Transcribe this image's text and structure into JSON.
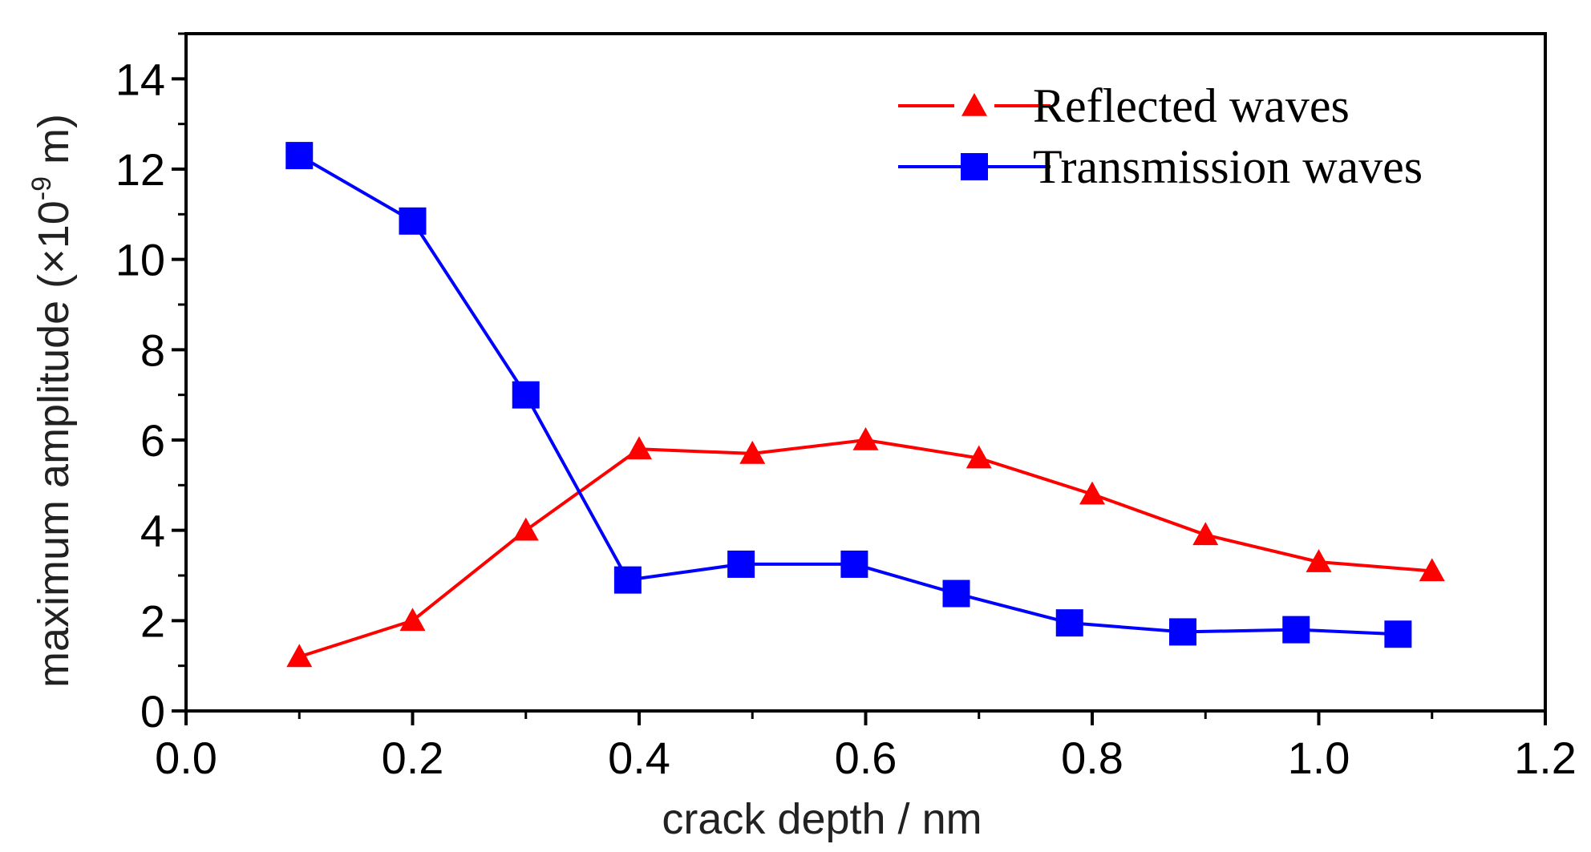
{
  "chart_data": {
    "type": "line",
    "xlabel": "crack depth / nm",
    "ylabel": "maximum amplitude (×10",
    "ylabel_sup": "-9",
    "ylabel_end": " m)",
    "xlim": [
      0.0,
      1.2
    ],
    "ylim": [
      0,
      15
    ],
    "xticks": [
      "0.0",
      "0.2",
      "0.4",
      "0.6",
      "0.8",
      "1.0",
      "1.2"
    ],
    "yticks": [
      "0",
      "2",
      "4",
      "6",
      "8",
      "10",
      "12",
      "14"
    ],
    "grid": false,
    "legend_position": "top-right",
    "series": [
      {
        "name": "Reflected waves",
        "color": "#ff0000",
        "marker": "triangle",
        "x": [
          0.1,
          0.2,
          0.3,
          0.4,
          0.5,
          0.6,
          0.7,
          0.8,
          0.9,
          1.0,
          1.1
        ],
        "y": [
          1.2,
          2.0,
          4.0,
          5.8,
          5.7,
          6.0,
          5.6,
          4.8,
          3.9,
          3.3,
          3.1
        ]
      },
      {
        "name": "Transmission waves",
        "color": "#0000ff",
        "marker": "square",
        "x": [
          0.1,
          0.2,
          0.3,
          0.39,
          0.49,
          0.59,
          0.68,
          0.78,
          0.88,
          0.98,
          1.07
        ],
        "y": [
          12.3,
          10.85,
          7.0,
          2.9,
          3.25,
          3.25,
          2.6,
          1.95,
          1.75,
          1.8,
          1.7
        ]
      }
    ]
  }
}
